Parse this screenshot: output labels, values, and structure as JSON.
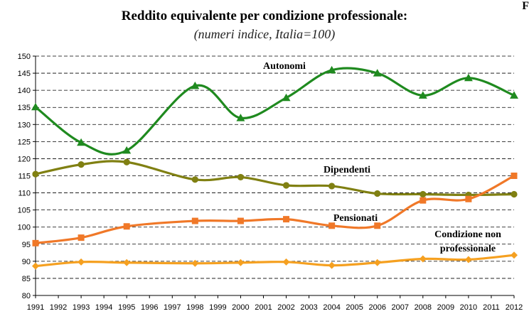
{
  "corner_text": "F",
  "chart_data": {
    "type": "line",
    "title": "Reddito equivalente per condizione professionale:",
    "subtitle": "(numeri indice, Italia=100)",
    "xlabel": "",
    "ylabel": "",
    "ylim": [
      80,
      150
    ],
    "y_ticks": [
      80,
      85,
      90,
      95,
      100,
      105,
      110,
      115,
      120,
      125,
      130,
      135,
      140,
      145,
      150
    ],
    "x_ticks": [
      1991,
      1992,
      1993,
      1994,
      1995,
      1996,
      1997,
      1998,
      1999,
      2000,
      2001,
      2002,
      2003,
      2004,
      2005,
      2006,
      2007,
      2008,
      2009,
      2010,
      2011,
      2012
    ],
    "x": [
      1991,
      1993,
      1995,
      1998,
      2000,
      2002,
      2004,
      2006,
      2008,
      2010,
      2012
    ],
    "grid": "horizontal dashed",
    "legend": "inline labels",
    "series": [
      {
        "name": "Autonomi",
        "color": "#1f8a1f",
        "marker": "triangle",
        "values": [
          135.1,
          124.7,
          122.4,
          141.3,
          131.9,
          137.8,
          145.9,
          145.0,
          138.5,
          143.6,
          138.5
        ]
      },
      {
        "name": "Dipendenti",
        "color": "#808012",
        "marker": "circle",
        "values": [
          115.5,
          118.3,
          119.0,
          113.9,
          114.6,
          112.2,
          112.0,
          109.8,
          109.6,
          109.4,
          109.6
        ]
      },
      {
        "name": "Pensionati",
        "color": "#f07828",
        "marker": "square",
        "values": [
          95.3,
          96.9,
          100.2,
          101.8,
          101.8,
          102.3,
          100.4,
          100.4,
          107.8,
          108.2,
          115.0
        ]
      },
      {
        "name": "Condizione non professionale",
        "label_lines": [
          "Condizione non",
          "professionale"
        ],
        "color": "#f5a020",
        "marker": "diamond",
        "values": [
          88.6,
          89.8,
          89.6,
          89.4,
          89.6,
          89.8,
          88.8,
          89.6,
          90.7,
          90.5,
          91.8
        ]
      }
    ]
  }
}
